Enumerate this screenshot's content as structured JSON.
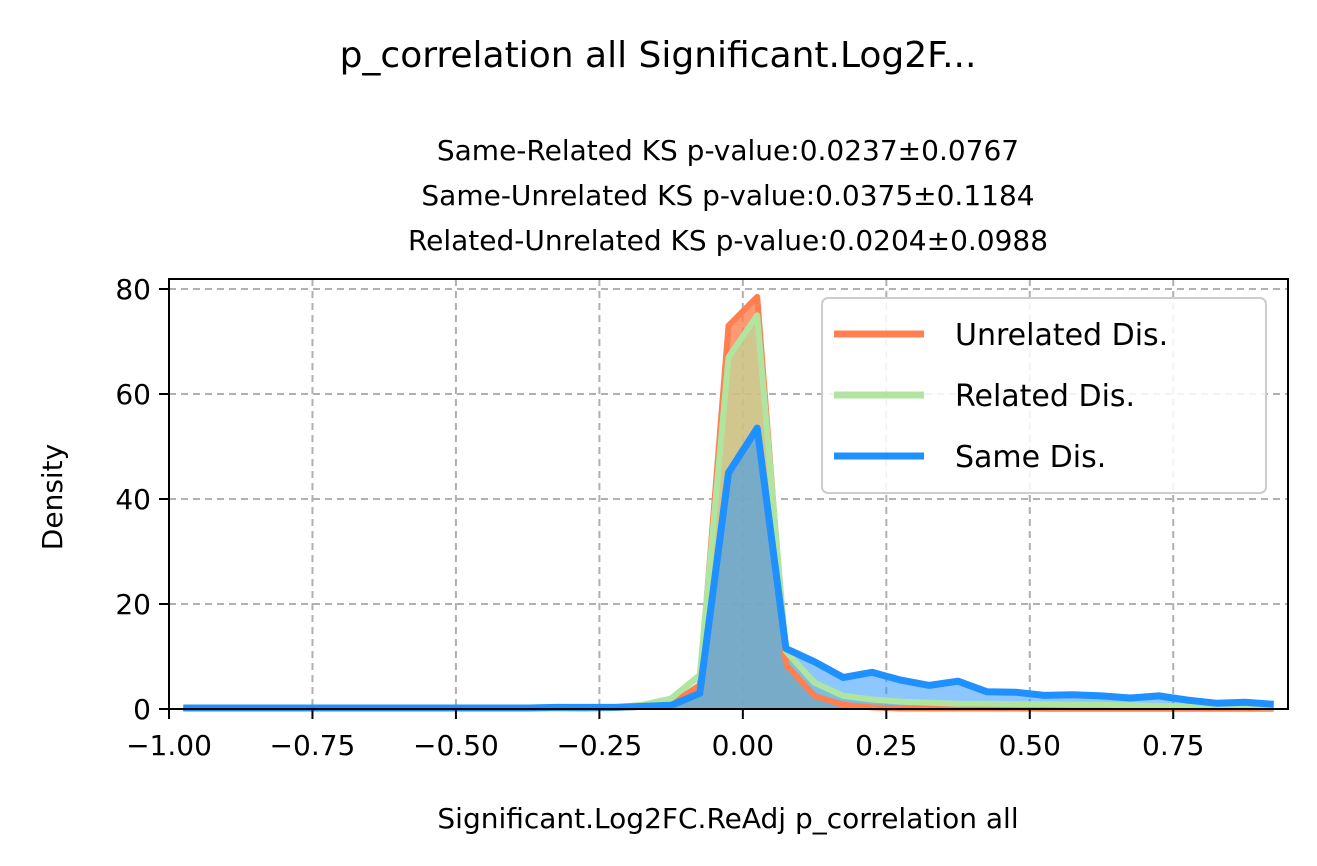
{
  "chart_data": {
    "type": "area",
    "title": "p_correlation all Significant.Log2F...",
    "subtitle_lines": [
      "Same-Related KS p-value:0.0237±0.0767",
      "Same-Unrelated KS p-value:0.0375±0.1184",
      "Related-Unrelated KS p-value:0.0204±0.0988"
    ],
    "xlabel": "Significant.Log2FC.ReAdj p_correlation all",
    "ylabel": "Density",
    "xlim": [
      -1.0,
      0.95
    ],
    "ylim": [
      0,
      82
    ],
    "xticks": [
      -1.0,
      -0.75,
      -0.5,
      -0.25,
      0.0,
      0.25,
      0.5,
      0.75
    ],
    "xtick_labels": [
      "−1.00",
      "−0.75",
      "−0.50",
      "−0.25",
      "0.00",
      "0.25",
      "0.50",
      "0.75"
    ],
    "yticks": [
      0,
      20,
      40,
      60,
      80
    ],
    "ytick_labels": [
      "0",
      "20",
      "40",
      "60",
      "80"
    ],
    "grid": true,
    "legend_position": "top-right",
    "series": [
      {
        "name": "Unrelated Dis.",
        "color": "#FF7F50",
        "x": [
          -0.975,
          -0.925,
          -0.875,
          -0.825,
          -0.775,
          -0.725,
          -0.675,
          -0.625,
          -0.575,
          -0.525,
          -0.475,
          -0.425,
          -0.375,
          -0.325,
          -0.275,
          -0.225,
          -0.175,
          -0.125,
          -0.075,
          -0.025,
          0.025,
          0.075,
          0.125,
          0.175,
          0.225,
          0.275,
          0.325,
          0.375,
          0.425,
          0.475,
          0.525,
          0.575,
          0.625,
          0.675,
          0.725,
          0.775,
          0.825,
          0.875,
          0.925
        ],
        "y": [
          0.1,
          0.1,
          0.1,
          0.1,
          0.1,
          0.1,
          0.1,
          0.1,
          0.1,
          0.1,
          0.1,
          0.1,
          0.1,
          0.1,
          0.1,
          0.2,
          0.4,
          1.0,
          4.5,
          73,
          78.5,
          8.5,
          2.5,
          0.8,
          0.3,
          0.1,
          0.1,
          0.1,
          0.1,
          0.1,
          0.05,
          0.05,
          0.05,
          0.05,
          0.05,
          0.05,
          0.05,
          0.05,
          0.05
        ]
      },
      {
        "name": "Related Dis.",
        "color": "#B0E5A0",
        "x": [
          -0.975,
          -0.925,
          -0.875,
          -0.825,
          -0.775,
          -0.725,
          -0.675,
          -0.625,
          -0.575,
          -0.525,
          -0.475,
          -0.425,
          -0.375,
          -0.325,
          -0.275,
          -0.225,
          -0.175,
          -0.125,
          -0.075,
          -0.025,
          0.025,
          0.075,
          0.125,
          0.175,
          0.225,
          0.275,
          0.325,
          0.375,
          0.425,
          0.475,
          0.525,
          0.575,
          0.625,
          0.675,
          0.725,
          0.775,
          0.825,
          0.875,
          0.925
        ],
        "y": [
          0.1,
          0.1,
          0.1,
          0.1,
          0.1,
          0.1,
          0.1,
          0.1,
          0.1,
          0.1,
          0.1,
          0.1,
          0.1,
          0.1,
          0.2,
          0.3,
          0.8,
          2.0,
          6.5,
          67,
          75,
          11,
          5.0,
          2.5,
          1.8,
          1.4,
          1.2,
          1.0,
          1.0,
          0.9,
          0.9,
          0.8,
          0.8,
          0.7,
          0.6,
          0.5,
          0.5,
          0.4,
          0.3
        ]
      },
      {
        "name": "Same Dis.",
        "color": "#1E90FF",
        "x": [
          -0.975,
          -0.925,
          -0.875,
          -0.825,
          -0.775,
          -0.725,
          -0.675,
          -0.625,
          -0.575,
          -0.525,
          -0.475,
          -0.425,
          -0.375,
          -0.325,
          -0.275,
          -0.225,
          -0.175,
          -0.125,
          -0.075,
          -0.025,
          0.025,
          0.075,
          0.125,
          0.175,
          0.225,
          0.275,
          0.325,
          0.375,
          0.425,
          0.475,
          0.525,
          0.575,
          0.625,
          0.675,
          0.725,
          0.775,
          0.825,
          0.875,
          0.925
        ],
        "y": [
          0.2,
          0.2,
          0.2,
          0.2,
          0.2,
          0.2,
          0.2,
          0.2,
          0.2,
          0.2,
          0.2,
          0.2,
          0.2,
          0.3,
          0.3,
          0.3,
          0.5,
          0.7,
          3.0,
          45,
          53.5,
          11.5,
          9.0,
          6.0,
          7.0,
          5.5,
          4.5,
          5.3,
          3.3,
          3.2,
          2.6,
          2.7,
          2.5,
          2.1,
          2.5,
          1.7,
          1.1,
          1.3,
          0.9
        ]
      }
    ]
  }
}
